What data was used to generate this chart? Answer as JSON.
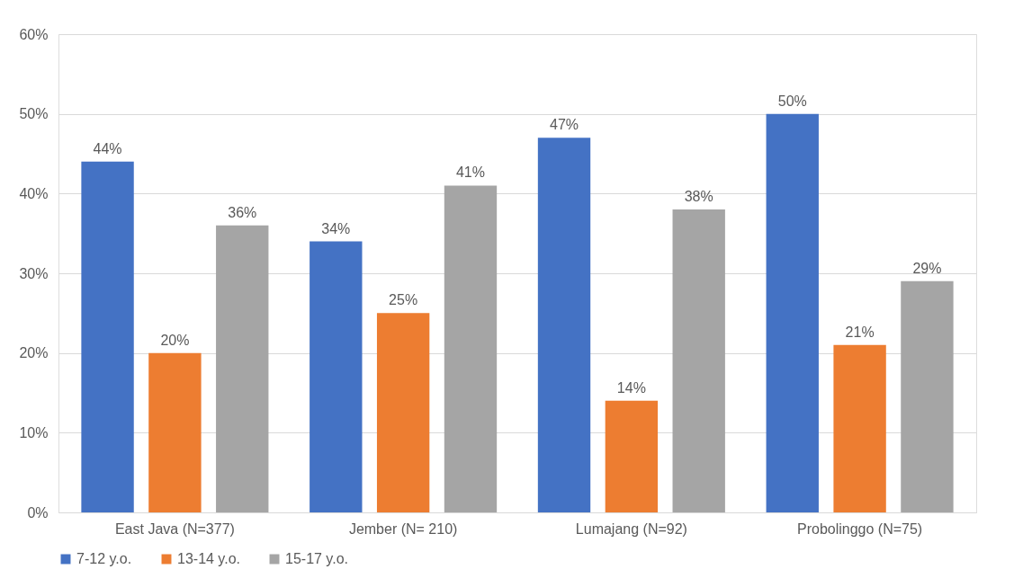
{
  "chart_data": {
    "type": "bar",
    "categories": [
      "East Java (N=377)",
      "Jember (N= 210)",
      "Lumajang (N=92)",
      "Probolinggo (N=75)"
    ],
    "series": [
      {
        "name": "7-12 y.o.",
        "color": "#4472c4",
        "values": [
          44,
          34,
          47,
          50
        ],
        "value_labels": [
          "44%",
          "34%",
          "47%",
          "50%"
        ]
      },
      {
        "name": "13-14 y.o.",
        "color": "#ed7d31",
        "values": [
          20,
          25,
          14,
          21
        ],
        "value_labels": [
          "20%",
          "25%",
          "14%",
          "21%"
        ]
      },
      {
        "name": "15-17 y.o.",
        "color": "#a5a5a5",
        "values": [
          36,
          41,
          38,
          29
        ],
        "value_labels": [
          "36%",
          "41%",
          "38%",
          "29%"
        ]
      }
    ],
    "ylim": [
      0,
      60
    ],
    "yticks": [
      {
        "value": 0,
        "label": "0%"
      },
      {
        "value": 10,
        "label": "10%"
      },
      {
        "value": 20,
        "label": "20%"
      },
      {
        "value": 30,
        "label": "30%"
      },
      {
        "value": 40,
        "label": "40%"
      },
      {
        "value": 50,
        "label": "50%"
      },
      {
        "value": 60,
        "label": "60%"
      }
    ],
    "grid": "y",
    "legend": "bottom"
  }
}
